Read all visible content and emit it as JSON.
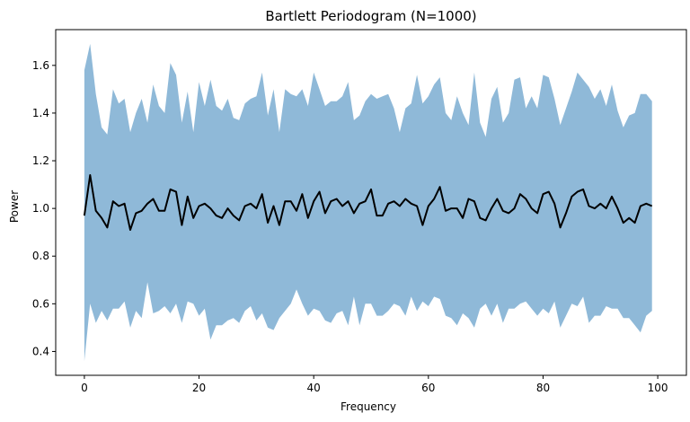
{
  "chart_data": {
    "type": "line",
    "title": "Bartlett Periodogram (N=1000)",
    "xlabel": "Frequency",
    "ylabel": "Power",
    "xlim": [
      -5,
      105
    ],
    "ylim": [
      0.3,
      1.75
    ],
    "xticks": [
      0,
      20,
      40,
      60,
      80,
      100
    ],
    "yticks": [
      0.4,
      0.6,
      0.8,
      1.0,
      1.2,
      1.4,
      1.6
    ],
    "ytick_labels": [
      "0.4",
      "0.6",
      "0.8",
      "1.0",
      "1.2",
      "1.4",
      "1.6"
    ],
    "grid": false,
    "line_color": "#000000",
    "band_color": "#8fb9d8",
    "x": [
      0,
      1,
      2,
      3,
      4,
      5,
      6,
      7,
      8,
      9,
      10,
      11,
      12,
      13,
      14,
      15,
      16,
      17,
      18,
      19,
      20,
      21,
      22,
      23,
      24,
      25,
      26,
      27,
      28,
      29,
      30,
      31,
      32,
      33,
      34,
      35,
      36,
      37,
      38,
      39,
      40,
      41,
      42,
      43,
      44,
      45,
      46,
      47,
      48,
      49,
      50,
      51,
      52,
      53,
      54,
      55,
      56,
      57,
      58,
      59,
      60,
      61,
      62,
      63,
      64,
      65,
      66,
      67,
      68,
      69,
      70,
      71,
      72,
      73,
      74,
      75,
      76,
      77,
      78,
      79,
      80,
      81,
      82,
      83,
      84,
      85,
      86,
      87,
      88,
      89,
      90,
      91,
      92,
      93,
      94,
      95,
      96,
      97,
      98,
      99
    ],
    "series": [
      {
        "kind": "line",
        "values": [
          0.97,
          1.14,
          0.99,
          0.96,
          0.92,
          1.03,
          1.01,
          1.02,
          0.91,
          0.98,
          0.99,
          1.02,
          1.04,
          0.99,
          0.99,
          1.08,
          1.07,
          0.93,
          1.05,
          0.96,
          1.01,
          1.02,
          1.0,
          0.97,
          0.96,
          1.0,
          0.97,
          0.95,
          1.01,
          1.02,
          1.0,
          1.06,
          0.94,
          1.01,
          0.93,
          1.03,
          1.03,
          0.99,
          1.06,
          0.96,
          1.03,
          1.07,
          0.98,
          1.03,
          1.04,
          1.01,
          1.03,
          0.98,
          1.02,
          1.03,
          1.08,
          0.97,
          0.97,
          1.02,
          1.03,
          1.01,
          1.04,
          1.02,
          1.01,
          0.93,
          1.01,
          1.04,
          1.09,
          0.99,
          1.0,
          1.0,
          0.96,
          1.04,
          1.03,
          0.96,
          0.95,
          1.0,
          1.04,
          0.99,
          0.98,
          1.0,
          1.06,
          1.04,
          1.0,
          0.98,
          1.06,
          1.07,
          1.02,
          0.92,
          0.98,
          1.05,
          1.07,
          1.08,
          1.01,
          1.0,
          1.02,
          1.0,
          1.05,
          1.0,
          0.94,
          0.96,
          0.94,
          1.01,
          1.02,
          1.01
        ]
      },
      {
        "kind": "band_upper",
        "values": [
          1.58,
          1.69,
          1.48,
          1.34,
          1.31,
          1.5,
          1.44,
          1.46,
          1.32,
          1.4,
          1.46,
          1.36,
          1.52,
          1.43,
          1.4,
          1.61,
          1.56,
          1.36,
          1.49,
          1.32,
          1.53,
          1.43,
          1.54,
          1.43,
          1.41,
          1.46,
          1.38,
          1.37,
          1.44,
          1.46,
          1.47,
          1.57,
          1.39,
          1.5,
          1.32,
          1.5,
          1.48,
          1.47,
          1.5,
          1.43,
          1.57,
          1.5,
          1.43,
          1.45,
          1.45,
          1.47,
          1.53,
          1.37,
          1.39,
          1.45,
          1.48,
          1.46,
          1.47,
          1.48,
          1.42,
          1.32,
          1.42,
          1.44,
          1.56,
          1.44,
          1.47,
          1.52,
          1.55,
          1.4,
          1.37,
          1.47,
          1.4,
          1.35,
          1.57,
          1.36,
          1.3,
          1.46,
          1.51,
          1.36,
          1.4,
          1.54,
          1.55,
          1.42,
          1.47,
          1.42,
          1.56,
          1.55,
          1.46,
          1.35,
          1.42,
          1.49,
          1.57,
          1.54,
          1.51,
          1.46,
          1.5,
          1.43,
          1.52,
          1.41,
          1.34,
          1.39,
          1.4,
          1.48,
          1.48,
          1.45
        ]
      },
      {
        "kind": "band_lower",
        "values": [
          0.36,
          0.6,
          0.52,
          0.57,
          0.53,
          0.58,
          0.58,
          0.61,
          0.5,
          0.57,
          0.54,
          0.69,
          0.56,
          0.57,
          0.59,
          0.56,
          0.6,
          0.52,
          0.61,
          0.6,
          0.55,
          0.58,
          0.45,
          0.51,
          0.51,
          0.53,
          0.54,
          0.52,
          0.57,
          0.59,
          0.53,
          0.56,
          0.5,
          0.49,
          0.54,
          0.57,
          0.6,
          0.66,
          0.6,
          0.55,
          0.58,
          0.57,
          0.53,
          0.52,
          0.56,
          0.57,
          0.51,
          0.63,
          0.51,
          0.6,
          0.6,
          0.55,
          0.55,
          0.57,
          0.6,
          0.59,
          0.55,
          0.63,
          0.57,
          0.61,
          0.59,
          0.63,
          0.62,
          0.55,
          0.54,
          0.51,
          0.56,
          0.54,
          0.5,
          0.58,
          0.6,
          0.55,
          0.6,
          0.52,
          0.58,
          0.58,
          0.6,
          0.61,
          0.58,
          0.55,
          0.58,
          0.56,
          0.61,
          0.5,
          0.55,
          0.6,
          0.59,
          0.63,
          0.52,
          0.55,
          0.55,
          0.59,
          0.58,
          0.58,
          0.54,
          0.54,
          0.51,
          0.48,
          0.55,
          0.57
        ]
      }
    ]
  }
}
